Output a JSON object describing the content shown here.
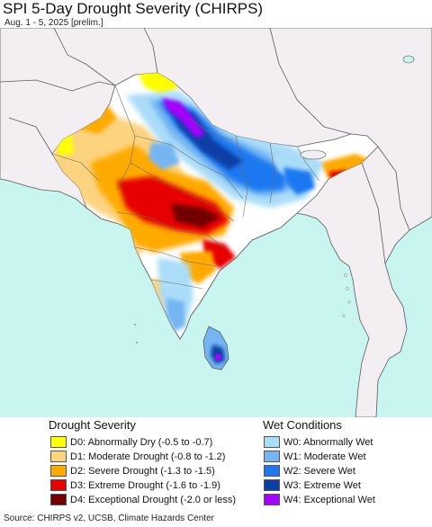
{
  "title": "SPI 5-Day Drought Severity (CHIRPS)",
  "subtitle": "Aug. 1 - 5, 2025 [prelim.]",
  "source": "Source: CHIRPS v2, UCSB, Climate Hazards Center",
  "colors": {
    "ocean": "#c9f5f1",
    "land_background": "#f2eef2",
    "normal_land": "#ffffff",
    "border": "#5a5a5a"
  },
  "legend": {
    "drought": {
      "heading": "Drought Severity",
      "items": [
        {
          "code": "D0",
          "label": "D0: Abnormally Dry (-0.5 to -0.7)",
          "color": "#ffff00"
        },
        {
          "code": "D1",
          "label": "D1: Moderate Drought (-0.8 to -1.2)",
          "color": "#fcd37f"
        },
        {
          "code": "D2",
          "label": "D2: Severe Drought (-1.3 to -1.5)",
          "color": "#ffaa00"
        },
        {
          "code": "D3",
          "label": "D3: Extreme Drought (-1.6 to -1.9)",
          "color": "#e60000"
        },
        {
          "code": "D4",
          "label": "D4: Exceptional Drought (-2.0 or less)",
          "color": "#730000"
        }
      ]
    },
    "wet": {
      "heading": "Wet Conditions",
      "items": [
        {
          "code": "W0",
          "label": "W0: Abnormally Wet",
          "color": "#aaddf8"
        },
        {
          "code": "W1",
          "label": "W1: Moderate Wet",
          "color": "#75b6f2"
        },
        {
          "code": "W2",
          "label": "W2: Severe Wet",
          "color": "#1f78f0"
        },
        {
          "code": "W3",
          "label": "W3: Extreme Wet",
          "color": "#0c3fa6"
        },
        {
          "code": "W4",
          "label": "W4: Exceptional Wet",
          "color": "#a600ff"
        }
      ]
    }
  }
}
